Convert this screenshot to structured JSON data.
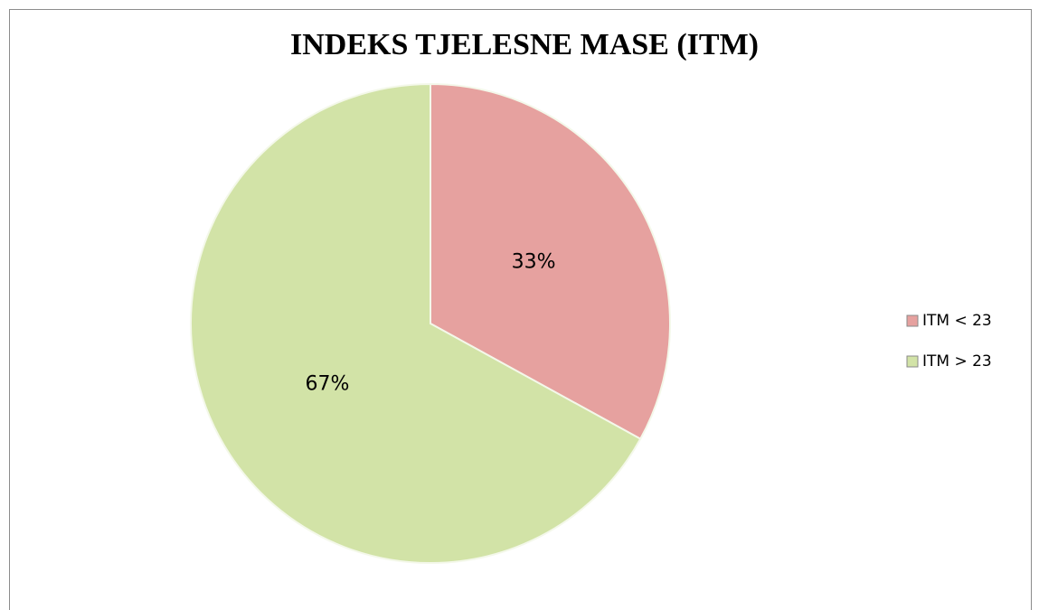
{
  "chart_data": {
    "type": "pie",
    "title": "INDEKS TJELESNE MASE (ITM)",
    "categories": [
      "ITM < 23",
      "ITM > 23"
    ],
    "values": [
      33,
      67
    ],
    "value_labels": [
      "33%",
      "67%"
    ],
    "colors": [
      "#e6a19f",
      "#d2e3a7"
    ],
    "legend": "right"
  }
}
